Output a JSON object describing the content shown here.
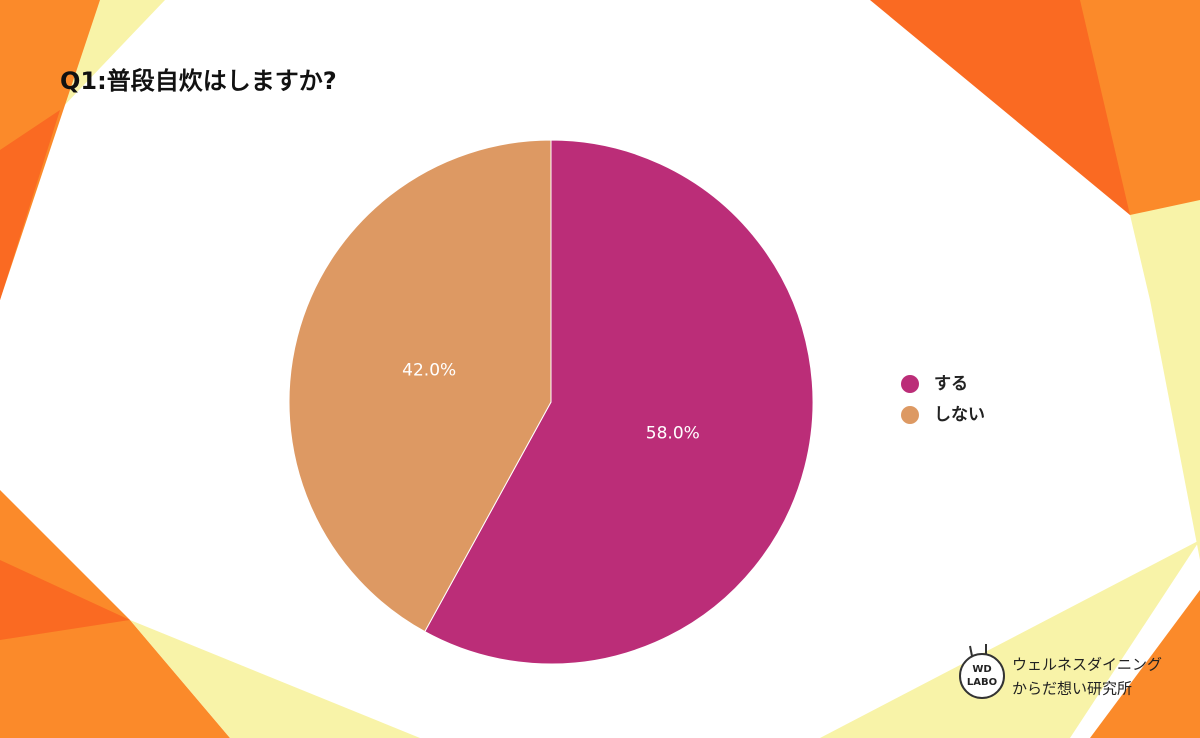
{
  "chart_data": {
    "type": "pie",
    "title": "Q1:普段自炊はしますか?",
    "categories": [
      "する",
      "しない"
    ],
    "values": [
      58.0,
      42.0
    ],
    "value_labels": [
      "58.0%",
      "42.0%"
    ],
    "colors": [
      "#bb2d78",
      "#dd9963"
    ],
    "legend": "right"
  },
  "logo": {
    "mark": [
      "WD",
      "LABO"
    ],
    "brand": [
      "ウェルネスダイニング",
      "からだ想い研究所"
    ]
  }
}
